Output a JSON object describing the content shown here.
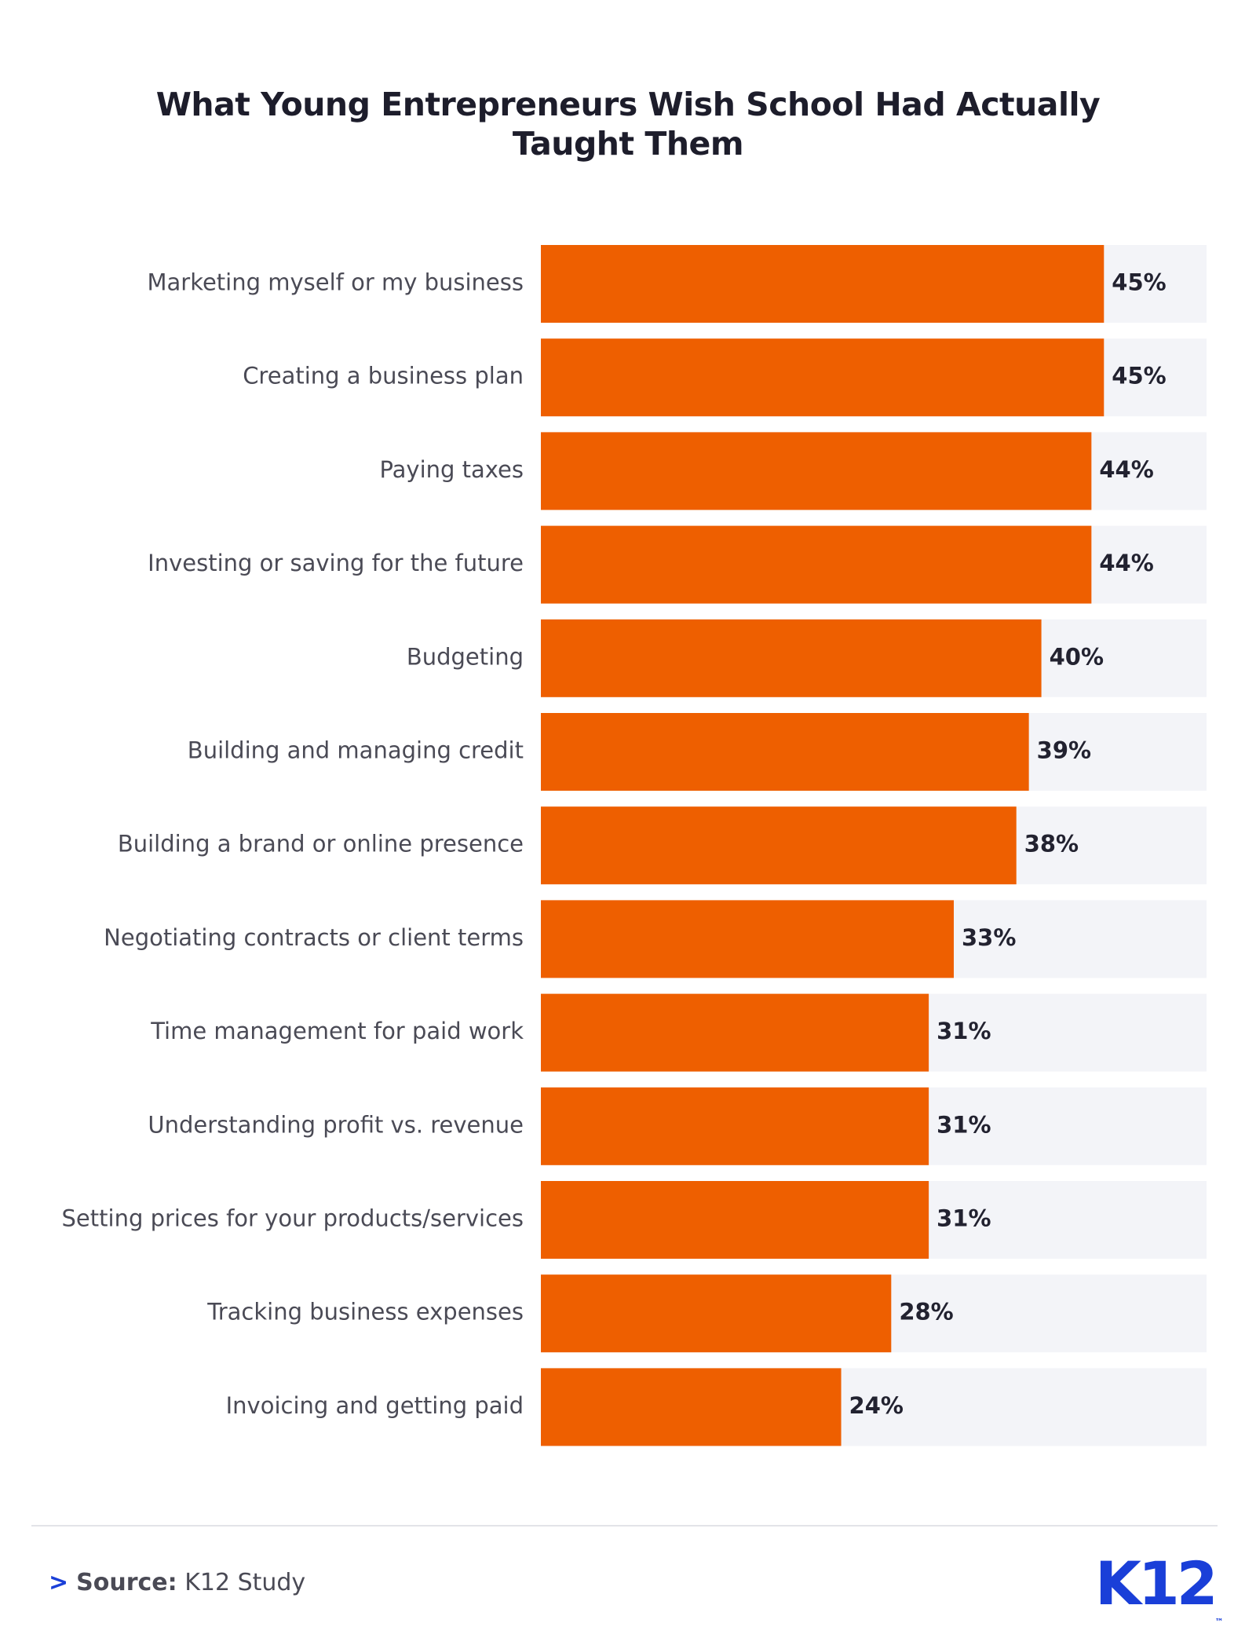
{
  "chart_data": {
    "type": "bar",
    "orientation": "horizontal",
    "title": "What Young Entrepreneurs Wish School Had Actually Taught Them",
    "categories": [
      "Marketing myself or my business",
      "Creating a business plan",
      "Paying taxes",
      "Investing or saving for the future",
      "Budgeting",
      "Building and managing credit",
      "Building a brand or online presence",
      "Negotiating contracts or client terms",
      "Time management for paid work",
      "Understanding profit vs. revenue",
      "Setting prices for your products/services",
      "Tracking business expenses",
      "Invoicing and getting paid"
    ],
    "values": [
      45,
      45,
      44,
      44,
      40,
      39,
      38,
      33,
      31,
      31,
      31,
      28,
      24
    ],
    "value_labels": [
      "45%",
      "45%",
      "44%",
      "44%",
      "40%",
      "39%",
      "38%",
      "33%",
      "31%",
      "31%",
      "31%",
      "28%",
      "24%"
    ],
    "color": "#ee5f00",
    "track_color": "#f3f4f8",
    "xlim": [
      0,
      53.2
    ]
  },
  "footer": {
    "source_label": "Source:",
    "source": "K12 Study",
    "logo": "K12",
    "logo_mark": "™"
  }
}
